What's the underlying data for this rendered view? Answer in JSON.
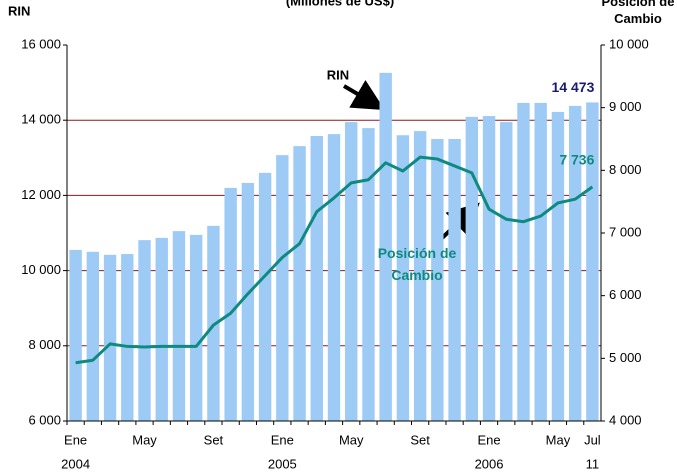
{
  "chart_data": {
    "type": "bar-line",
    "title": "(Millones de US$)",
    "y_label": "RIN",
    "y2_label": "Posición de Cambio",
    "categories": [
      "Ene",
      null,
      null,
      null,
      "May",
      null,
      null,
      null,
      "Set",
      null,
      null,
      null,
      "Ene",
      null,
      null,
      null,
      "May",
      null,
      null,
      null,
      "Set",
      null,
      null,
      null,
      "Ene",
      null,
      null,
      null,
      "May",
      null,
      "Jul"
    ],
    "category_years": [
      "2004",
      null,
      null,
      null,
      null,
      null,
      null,
      null,
      null,
      null,
      null,
      null,
      "2005",
      null,
      null,
      null,
      null,
      null,
      null,
      null,
      null,
      null,
      null,
      null,
      "2006",
      null,
      null,
      null,
      null,
      null,
      "11"
    ],
    "series": [
      {
        "name": "RIN",
        "type": "bar",
        "axis": "y",
        "color": "#9dcbf5",
        "values": [
          10550,
          10500,
          10420,
          10440,
          10810,
          10870,
          11050,
          10950,
          11190,
          12200,
          12330,
          12600,
          13070,
          13310,
          13580,
          13630,
          13950,
          13790,
          15260,
          13600,
          13710,
          13500,
          13500,
          14090,
          14110,
          13950,
          14460,
          14460,
          14220,
          14380,
          14473
        ],
        "value_labels": [
          null,
          null,
          null,
          null,
          null,
          null,
          null,
          null,
          null,
          null,
          null,
          null,
          null,
          null,
          null,
          null,
          null,
          null,
          null,
          null,
          null,
          null,
          null,
          null,
          null,
          null,
          null,
          null,
          null,
          null,
          "14 473"
        ]
      },
      {
        "name": "Posición de Cambio",
        "type": "line",
        "axis": "y2",
        "color": "#0e8a80",
        "values": [
          4930,
          4970,
          5230,
          5190,
          5180,
          5190,
          5190,
          5190,
          5530,
          5720,
          6030,
          6320,
          6610,
          6830,
          7340,
          7560,
          7800,
          7850,
          8120,
          7990,
          8210,
          8180,
          8070,
          7960,
          7380,
          7220,
          7180,
          7270,
          7480,
          7540,
          7736
        ],
        "value_labels": [
          null,
          null,
          null,
          null,
          null,
          null,
          null,
          null,
          null,
          null,
          null,
          null,
          null,
          null,
          null,
          null,
          null,
          null,
          null,
          null,
          null,
          null,
          null,
          null,
          null,
          null,
          null,
          null,
          null,
          null,
          "7 736"
        ]
      }
    ],
    "ylim": [
      6000,
      16000
    ],
    "yticks": [
      {
        "value": 6000,
        "label": "6 000"
      },
      {
        "value": 8000,
        "label": "8 000"
      },
      {
        "value": 10000,
        "label": "10 000"
      },
      {
        "value": 12000,
        "label": "12 000"
      },
      {
        "value": 14000,
        "label": "14 000"
      },
      {
        "value": 16000,
        "label": "16 000"
      }
    ],
    "y2lim": [
      4000,
      10000
    ],
    "y2ticks": [
      {
        "value": 4000,
        "label": "4 000"
      },
      {
        "value": 5000,
        "label": "5 000"
      },
      {
        "value": 6000,
        "label": "6 000"
      },
      {
        "value": 7000,
        "label": "7 000"
      },
      {
        "value": 8000,
        "label": "8 000"
      },
      {
        "value": 9000,
        "label": "9 000"
      },
      {
        "value": 10000,
        "label": "10 000"
      }
    ],
    "grid": true,
    "grid_color": "#8b1a1a",
    "annotations": [
      "RIN",
      "Posición de Cambio"
    ]
  }
}
